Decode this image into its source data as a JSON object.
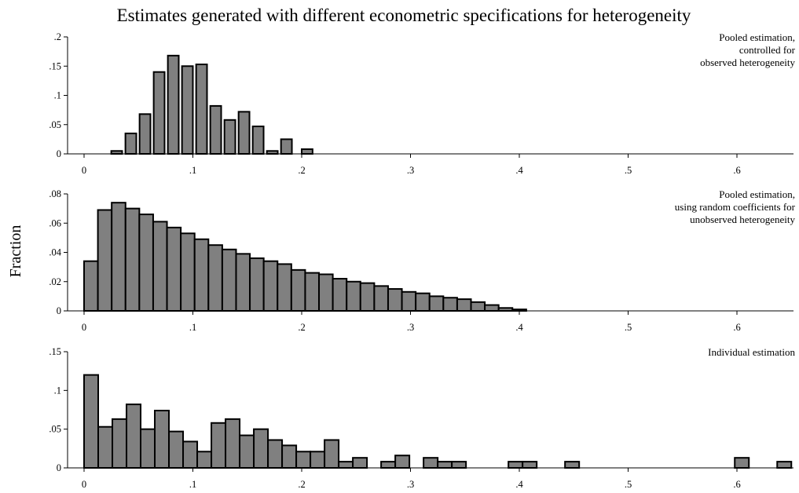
{
  "title": "Estimates generated with different econometric specifications for heterogeneity",
  "ylabel": "Fraction",
  "chart_data": [
    {
      "type": "bar",
      "panel": "top",
      "annotation": [
        "Pooled estimation,",
        "controlled for",
        "observed heterogeneity"
      ],
      "bin_width": 0.01,
      "xlim": [
        0,
        0.65
      ],
      "xticks": [
        0,
        0.1,
        0.2,
        0.3,
        0.4,
        0.5,
        0.6
      ],
      "xtick_labels": [
        "0",
        ".1",
        ".2",
        ".3",
        ".4",
        ".5",
        ".6"
      ],
      "ylim": [
        0,
        0.2
      ],
      "yticks": [
        0,
        0.05,
        0.1,
        0.15,
        0.2
      ],
      "ytick_labels": [
        "0",
        ".05",
        ".1",
        ".15",
        ".2"
      ],
      "bin_starts": [
        0.025,
        0.038,
        0.051,
        0.064,
        0.077,
        0.09,
        0.103,
        0.116,
        0.129,
        0.142,
        0.155,
        0.168,
        0.181,
        0.2
      ],
      "values": [
        0.005,
        0.035,
        0.068,
        0.14,
        0.168,
        0.15,
        0.153,
        0.082,
        0.058,
        0.072,
        0.047,
        0.005,
        0.025,
        0.008
      ]
    },
    {
      "type": "bar",
      "panel": "middle",
      "annotation": [
        "Pooled estimation,",
        "using random coefficients for",
        "unobserved heterogeneity"
      ],
      "xlim": [
        0,
        0.65
      ],
      "xticks": [
        0,
        0.1,
        0.2,
        0.3,
        0.4,
        0.5,
        0.6
      ],
      "xtick_labels": [
        "0",
        ".1",
        ".2",
        ".3",
        ".4",
        ".5",
        ".6"
      ],
      "ylim": [
        0,
        0.08
      ],
      "yticks": [
        0,
        0.02,
        0.04,
        0.06,
        0.08
      ],
      "ytick_labels": [
        "0",
        ".02",
        ".04",
        ".06",
        ".08"
      ],
      "bin_starts": [
        0,
        0.0127,
        0.0254,
        0.0381,
        0.0508,
        0.0635,
        0.0762,
        0.0889,
        0.1016,
        0.1143,
        0.127,
        0.1397,
        0.1524,
        0.1651,
        0.1778,
        0.1905,
        0.2032,
        0.2159,
        0.2286,
        0.2413,
        0.254,
        0.2667,
        0.2794,
        0.2921,
        0.3048,
        0.3175,
        0.3302,
        0.3429,
        0.3556,
        0.3683,
        0.381,
        0.3937
      ],
      "values": [
        0.034,
        0.069,
        0.074,
        0.07,
        0.066,
        0.061,
        0.057,
        0.053,
        0.049,
        0.045,
        0.042,
        0.039,
        0.036,
        0.034,
        0.032,
        0.028,
        0.026,
        0.025,
        0.022,
        0.02,
        0.019,
        0.017,
        0.015,
        0.013,
        0.012,
        0.01,
        0.009,
        0.008,
        0.006,
        0.004,
        0.002,
        0.001
      ]
    },
    {
      "type": "bar",
      "panel": "bottom",
      "annotation": [
        "Individual estimation"
      ],
      "xlim": [
        0,
        0.65
      ],
      "xticks": [
        0,
        0.1,
        0.2,
        0.3,
        0.4,
        0.5,
        0.6
      ],
      "xtick_labels": [
        "0",
        ".1",
        ".2",
        ".3",
        ".4",
        ".5",
        ".6"
      ],
      "ylim": [
        0,
        0.15
      ],
      "yticks": [
        0,
        0.05,
        0.1,
        0.15
      ],
      "ytick_labels": [
        "0",
        ".05",
        ".1",
        ".15"
      ],
      "bin_starts": [
        0,
        0.013,
        0.026,
        0.039,
        0.052,
        0.065,
        0.078,
        0.091,
        0.104,
        0.117,
        0.13,
        0.143,
        0.156,
        0.169,
        0.182,
        0.195,
        0.208,
        0.221,
        0.234,
        0.247,
        0.273,
        0.286,
        0.312,
        0.325,
        0.338,
        0.39,
        0.403,
        0.442,
        0.598,
        0.637
      ],
      "values": [
        0.12,
        0.053,
        0.063,
        0.082,
        0.05,
        0.074,
        0.047,
        0.034,
        0.021,
        0.058,
        0.063,
        0.042,
        0.05,
        0.036,
        0.029,
        0.021,
        0.021,
        0.036,
        0.008,
        0.013,
        0.008,
        0.016,
        0.013,
        0.008,
        0.008,
        0.008,
        0.008,
        0.008,
        0.013,
        0.008
      ]
    }
  ]
}
